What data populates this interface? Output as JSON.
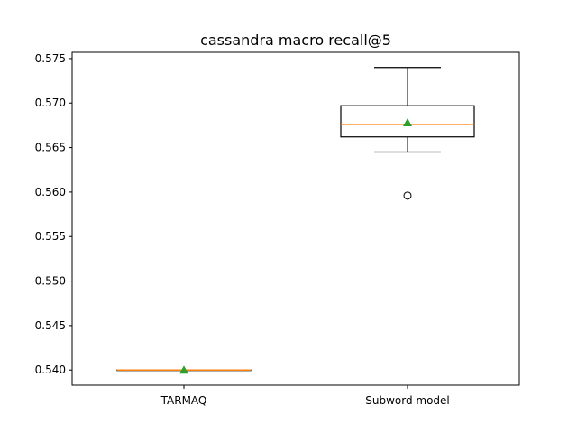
{
  "chart_data": {
    "type": "box",
    "title": "cassandra macro recall@5",
    "xlabel": "",
    "ylabel": "",
    "ylim": [
      0.5383,
      0.5757
    ],
    "yticks": [
      0.54,
      0.545,
      0.55,
      0.555,
      0.56,
      0.565,
      0.57,
      0.575
    ],
    "ytick_labels": [
      "0.540",
      "0.545",
      "0.550",
      "0.555",
      "0.560",
      "0.565",
      "0.570",
      "0.575"
    ],
    "grid": false,
    "categories": [
      "TARMAQ",
      "Subword model"
    ],
    "series": [
      {
        "whisker_low": 0.54,
        "q1": 0.54,
        "median": 0.54,
        "q3": 0.54,
        "whisker_high": 0.54,
        "mean": 0.54,
        "outliers": []
      },
      {
        "whisker_low": 0.5645,
        "q1": 0.5662,
        "median": 0.5676,
        "q3": 0.5697,
        "whisker_high": 0.574,
        "mean": 0.5678,
        "outliers": [
          0.5596
        ]
      }
    ],
    "colors": {
      "box": "#000000",
      "median": "#ff7f0e",
      "mean": "#2ca02c"
    }
  }
}
